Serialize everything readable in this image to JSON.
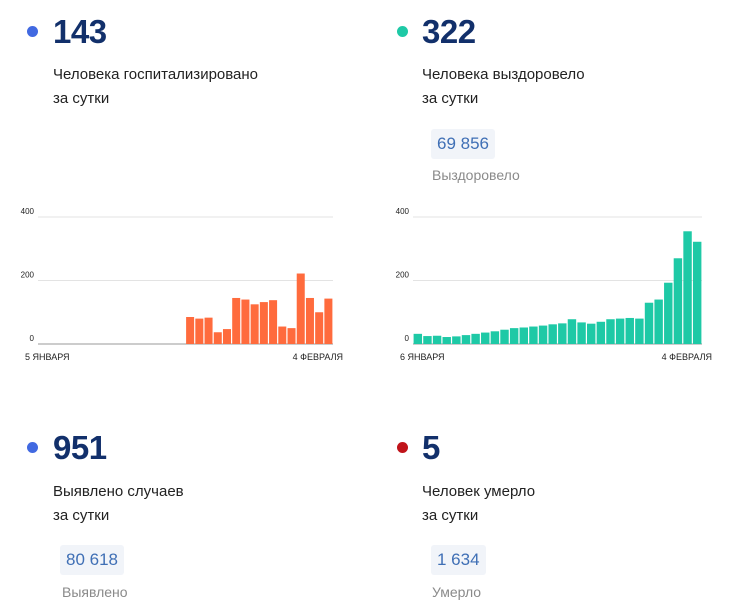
{
  "stats": {
    "hospitalized": {
      "value": "143",
      "line1": "Человека госпитализировано",
      "line2": "за сутки",
      "dot_color": "#4169e1"
    },
    "recovered": {
      "value": "322",
      "line1": "Человека выздоровело",
      "line2": "за сутки",
      "dot_color": "#1ec9a6",
      "total": "69 856",
      "total_label": "Выздоровело"
    },
    "cases": {
      "value": "951",
      "line1": "Выявлено случаев",
      "line2": "за сутки",
      "dot_color": "#4169e1",
      "total": "80 618",
      "total_label": "Выявлено"
    },
    "deaths": {
      "value": "5",
      "line1": "Человек умерло",
      "line2": "за сутки",
      "dot_color": "#c0131a",
      "total": "1 634",
      "total_label": "Умерло"
    }
  },
  "chart_data": [
    {
      "type": "bar",
      "title": "",
      "color": "#ff6b3d",
      "ylim": [
        0,
        400
      ],
      "yticks": [
        0,
        200,
        400
      ],
      "x_start_label": "5 ЯНВАРЯ",
      "x_end_label": "4 ФЕВРАЛЯ",
      "values": [
        0,
        0,
        0,
        0,
        0,
        0,
        0,
        0,
        0,
        0,
        0,
        0,
        0,
        0,
        0,
        0,
        85,
        80,
        83,
        37,
        47,
        145,
        140,
        125,
        132,
        138,
        55,
        50,
        222,
        145,
        100,
        143
      ],
      "grid": true
    },
    {
      "type": "bar",
      "title": "",
      "color": "#1ec9a6",
      "ylim": [
        0,
        400
      ],
      "yticks": [
        0,
        200,
        400
      ],
      "x_start_label": "6 ЯНВАРЯ",
      "x_end_label": "4 ФЕВРАЛЯ",
      "values": [
        32,
        25,
        26,
        22,
        24,
        28,
        32,
        36,
        40,
        45,
        50,
        52,
        55,
        58,
        62,
        65,
        78,
        68,
        64,
        70,
        78,
        80,
        82,
        80,
        130,
        140,
        193,
        270,
        355,
        322
      ],
      "grid": true
    }
  ]
}
